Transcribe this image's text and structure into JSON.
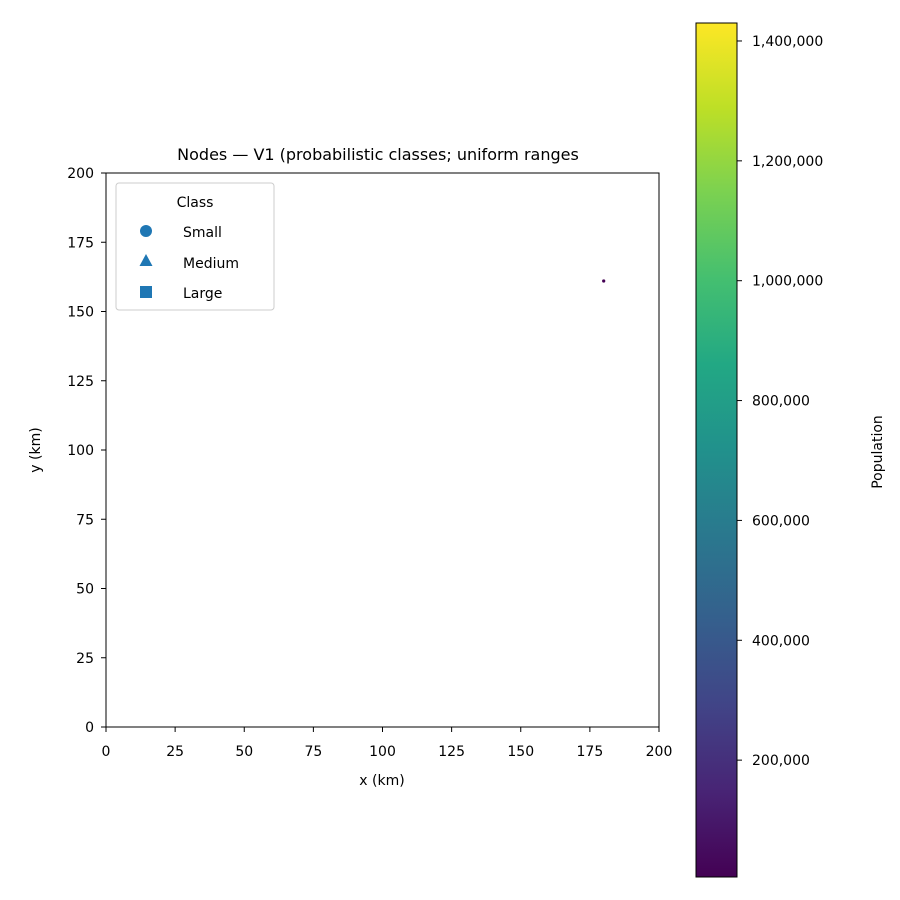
{
  "chart_data": {
    "type": "scatter",
    "title": "Nodes — V1 (probabilistic classes; uniform ranges",
    "xlabel": "x (km)",
    "ylabel": "y (km)",
    "xlim": [
      0,
      200
    ],
    "ylim": [
      0,
      200
    ],
    "x_ticks": [
      "0",
      "25",
      "50",
      "75",
      "100",
      "125",
      "150",
      "175",
      "200"
    ],
    "y_ticks": [
      "0",
      "25",
      "50",
      "75",
      "100",
      "125",
      "150",
      "175",
      "200"
    ],
    "grid": false,
    "legend": {
      "title": "Class",
      "position": "top-left",
      "entries": [
        {
          "label": "Small",
          "marker": "circle"
        },
        {
          "label": "Medium",
          "marker": "triangle"
        },
        {
          "label": "Large",
          "marker": "square"
        }
      ],
      "color": "#1f77b4"
    },
    "points": [
      {
        "x": 180,
        "y": 161,
        "population": 5000,
        "class": "Small"
      }
    ],
    "colorbar": {
      "label": "Population",
      "colormap": "viridis",
      "range": [
        5000,
        1430000
      ],
      "ticks": [
        200000,
        400000,
        600000,
        800000,
        1000000,
        1200000,
        1400000
      ],
      "tick_labels": [
        "200,000",
        "400,000",
        "600,000",
        "800,000",
        "1,000,000",
        "1,200,000",
        "1,400,000"
      ]
    }
  }
}
